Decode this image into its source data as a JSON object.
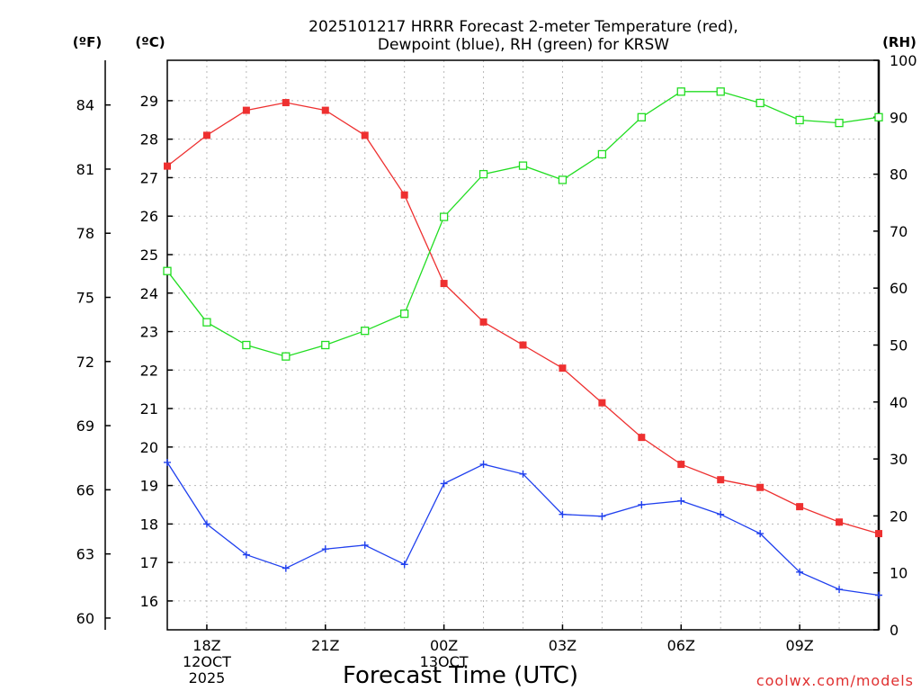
{
  "chart_data": {
    "type": "line",
    "title": "2025101217 HRRR Forecast 2-meter Temperature (red), Dewpoint (blue), RH (green) for KRSW",
    "title_lines": [
      "2025101217 HRRR Forecast 2-meter Temperature (red),",
      "Dewpoint (blue), RH (green) for KRSW"
    ],
    "xlabel": "Forecast Time (UTC)",
    "units": {
      "left_outer": "(ºF)",
      "left_inner": "(ºC)",
      "right": "(RH)"
    },
    "x_hours": [
      0,
      1,
      2,
      3,
      4,
      5,
      6,
      7,
      8,
      9,
      10,
      11,
      12,
      13,
      14,
      15,
      16,
      17,
      18
    ],
    "xlim": [
      0,
      18
    ],
    "x_ticks": [
      {
        "hour": 1,
        "label": "18Z",
        "date": [
          "12OCT",
          "2025"
        ]
      },
      {
        "hour": 4,
        "label": "21Z",
        "date": []
      },
      {
        "hour": 7,
        "label": "00Z",
        "date": [
          "13OCT"
        ]
      },
      {
        "hour": 10,
        "label": "03Z",
        "date": []
      },
      {
        "hour": 13,
        "label": "06Z",
        "date": []
      },
      {
        "hour": 16,
        "label": "09Z",
        "date": []
      }
    ],
    "celsius_axis": {
      "min": 15.25,
      "max": 30.05,
      "ticks": [
        16,
        17,
        18,
        19,
        20,
        21,
        22,
        23,
        24,
        25,
        26,
        27,
        28,
        29
      ]
    },
    "fahrenheit_axis": {
      "ticks": [
        60,
        63,
        66,
        69,
        72,
        75,
        78,
        81,
        84
      ]
    },
    "rh_axis": {
      "min": 0,
      "max": 100,
      "ticks": [
        0,
        10,
        20,
        30,
        40,
        50,
        60,
        70,
        80,
        90,
        100
      ]
    },
    "series": [
      {
        "name": "Temperature",
        "axis": "C",
        "color": "#ee3030",
        "marker": "filled-square",
        "values": [
          27.3,
          28.1,
          28.75,
          28.95,
          28.75,
          28.1,
          26.55,
          24.25,
          23.25,
          22.65,
          22.05,
          21.15,
          20.25,
          19.55,
          19.15,
          18.95,
          18.45,
          18.05,
          17.75
        ]
      },
      {
        "name": "Dewpoint",
        "axis": "C",
        "color": "#2040ee",
        "marker": "plus",
        "values": [
          19.6,
          18.0,
          17.2,
          16.85,
          17.35,
          17.45,
          16.95,
          19.05,
          19.55,
          19.3,
          18.25,
          18.2,
          18.5,
          18.6,
          18.25,
          17.75,
          16.75,
          16.3,
          16.15
        ]
      },
      {
        "name": "RH",
        "axis": "RH",
        "color": "#22dd22",
        "marker": "open-square",
        "values": [
          63,
          54,
          50,
          48,
          50,
          52.5,
          55.5,
          72.5,
          80,
          81.5,
          79,
          83.5,
          90,
          94.5,
          94.5,
          92.5,
          89.5,
          89,
          90
        ]
      }
    ]
  },
  "credit": "coolwx.com/models"
}
